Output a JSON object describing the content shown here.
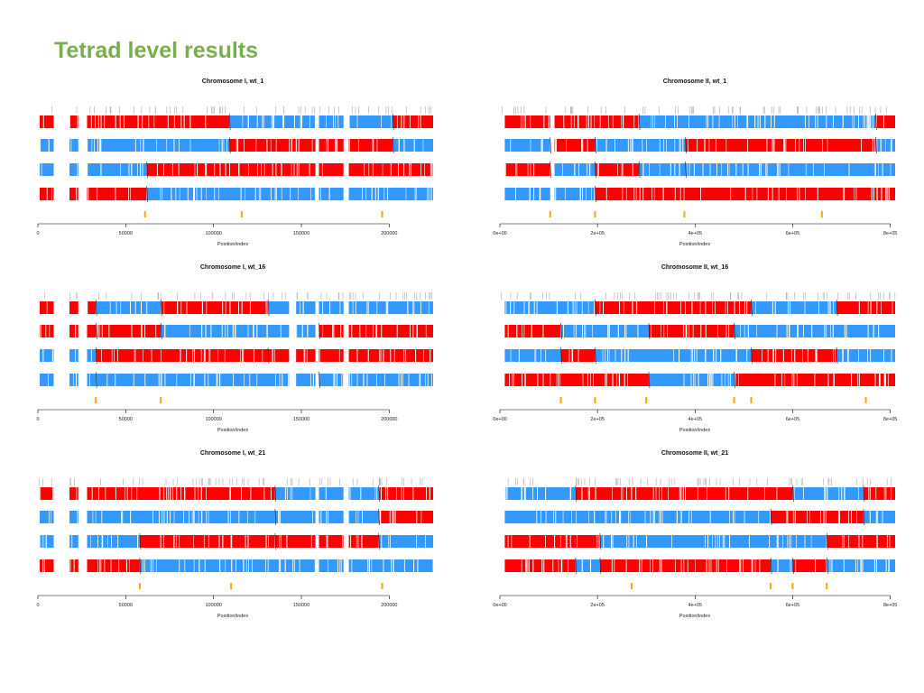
{
  "slide": {
    "title": "Tetrad level results"
  },
  "colors": {
    "parent_a": "#ff0000",
    "parent_b": "#3399ff",
    "crossover_marker": "#ffa500",
    "marker_tick": "#aaaaaa",
    "axis": "#000000",
    "title": "#77b04a"
  },
  "chart_data": [
    {
      "type": "bar",
      "title": "Chromosome I, wt_1",
      "xlabel": "Position/index",
      "xlim": [
        0,
        225000
      ],
      "xticks": [
        0,
        50000,
        100000,
        150000,
        200000
      ],
      "xtick_labels": [
        "0",
        "50000",
        "100000",
        "150000",
        "200000"
      ],
      "gaps": [
        [
          9000,
          18000
        ],
        [
          23000,
          28000
        ],
        [
          158000,
          160000
        ],
        [
          174000,
          177000
        ]
      ],
      "spores": [
        {
          "segments": [
            [
              1000,
              109000,
              "red"
            ],
            [
              109000,
              202000,
              "blue"
            ],
            [
              202000,
              225000,
              "red"
            ]
          ]
        },
        {
          "segments": [
            [
              1000,
              109000,
              "blue"
            ],
            [
              109000,
              202000,
              "red"
            ],
            [
              202000,
              225000,
              "blue"
            ]
          ]
        },
        {
          "segments": [
            [
              1000,
              62000,
              "blue"
            ],
            [
              62000,
              225000,
              "red"
            ]
          ]
        },
        {
          "segments": [
            [
              1000,
              62000,
              "red"
            ],
            [
              62000,
              225000,
              "blue"
            ]
          ]
        }
      ],
      "crossovers": [
        61000,
        116000,
        196000
      ]
    },
    {
      "type": "bar",
      "title": "Chromosome II, wt_1",
      "xlabel": "Position/index",
      "xlim": [
        0,
        810000
      ],
      "xticks": [
        0,
        200000,
        400000,
        600000,
        800000
      ],
      "xtick_labels": [
        "0e+00",
        "2e+05",
        "4e+05",
        "6e+05",
        "8e+05"
      ],
      "gaps": [
        [
          103000,
          112000
        ]
      ],
      "spores": [
        {
          "segments": [
            [
              10000,
              285000,
              "red"
            ],
            [
              285000,
              770000,
              "blue"
            ],
            [
              770000,
              810000,
              "red"
            ]
          ]
        },
        {
          "segments": [
            [
              10000,
              103000,
              "blue"
            ],
            [
              103000,
              195000,
              "red"
            ],
            [
              195000,
              380000,
              "blue"
            ],
            [
              380000,
              770000,
              "red"
            ],
            [
              770000,
              810000,
              "blue"
            ]
          ]
        },
        {
          "segments": [
            [
              10000,
              103000,
              "red"
            ],
            [
              103000,
              195000,
              "blue"
            ],
            [
              195000,
              285000,
              "red"
            ],
            [
              285000,
              380000,
              "blue"
            ],
            [
              380000,
              810000,
              "blue"
            ]
          ]
        },
        {
          "segments": [
            [
              10000,
              195000,
              "blue"
            ],
            [
              195000,
              810000,
              "red"
            ]
          ]
        }
      ],
      "crossovers": [
        103000,
        195000,
        378000,
        660000
      ]
    },
    {
      "type": "bar",
      "title": "Chromosome I, wt_16",
      "xlabel": "Position/index",
      "xlim": [
        0,
        225000
      ],
      "xticks": [
        0,
        50000,
        100000,
        150000,
        200000
      ],
      "xtick_labels": [
        "0",
        "50000",
        "100000",
        "150000",
        "200000"
      ],
      "gaps": [
        [
          9000,
          18000
        ],
        [
          23000,
          28000
        ],
        [
          143000,
          147000
        ],
        [
          158000,
          160000
        ],
        [
          174000,
          177000
        ]
      ],
      "spores": [
        {
          "segments": [
            [
              1000,
              33000,
              "red"
            ],
            [
              33000,
              70000,
              "blue"
            ],
            [
              70000,
              131000,
              "red"
            ],
            [
              131000,
              225000,
              "blue"
            ]
          ]
        },
        {
          "segments": [
            [
              1000,
              33000,
              "red"
            ],
            [
              33000,
              70000,
              "red"
            ],
            [
              70000,
              160000,
              "blue"
            ],
            [
              160000,
              225000,
              "red"
            ]
          ]
        },
        {
          "segments": [
            [
              1000,
              33000,
              "blue"
            ],
            [
              33000,
              131000,
              "red"
            ],
            [
              131000,
              225000,
              "red"
            ]
          ]
        },
        {
          "segments": [
            [
              1000,
              33000,
              "blue"
            ],
            [
              33000,
              160000,
              "blue"
            ],
            [
              160000,
              225000,
              "blue"
            ]
          ]
        }
      ],
      "crossovers": [
        33000,
        70000
      ]
    },
    {
      "type": "bar",
      "title": "Chromosome II, wt_16",
      "xlabel": "Position/index",
      "xlim": [
        0,
        810000
      ],
      "xticks": [
        0,
        200000,
        400000,
        600000,
        800000
      ],
      "xtick_labels": [
        "0e+00",
        "2e+05",
        "4e+05",
        "6e+05",
        "8e+05"
      ],
      "gaps": [],
      "spores": [
        {
          "segments": [
            [
              10000,
              195000,
              "blue"
            ],
            [
              195000,
              515000,
              "red"
            ],
            [
              515000,
              690000,
              "blue"
            ],
            [
              690000,
              810000,
              "red"
            ]
          ]
        },
        {
          "segments": [
            [
              10000,
              125000,
              "red"
            ],
            [
              125000,
              305000,
              "blue"
            ],
            [
              305000,
              480000,
              "red"
            ],
            [
              480000,
              810000,
              "blue"
            ]
          ]
        },
        {
          "segments": [
            [
              10000,
              125000,
              "blue"
            ],
            [
              125000,
              195000,
              "red"
            ],
            [
              195000,
              515000,
              "blue"
            ],
            [
              515000,
              690000,
              "red"
            ],
            [
              690000,
              810000,
              "blue"
            ]
          ]
        },
        {
          "segments": [
            [
              10000,
              305000,
              "red"
            ],
            [
              305000,
              480000,
              "blue"
            ],
            [
              480000,
              810000,
              "red"
            ]
          ]
        }
      ],
      "crossovers": [
        125000,
        195000,
        300000,
        480000,
        515000,
        750000
      ]
    },
    {
      "type": "bar",
      "title": "Chromosome I, wt_21",
      "xlabel": "Position/index",
      "xlim": [
        0,
        225000
      ],
      "xticks": [
        0,
        50000,
        100000,
        150000,
        200000
      ],
      "xtick_labels": [
        "0",
        "50000",
        "100000",
        "150000",
        "200000"
      ],
      "gaps": [
        [
          9000,
          18000
        ],
        [
          23000,
          28000
        ],
        [
          158000,
          160000
        ],
        [
          174000,
          177000
        ]
      ],
      "spores": [
        {
          "segments": [
            [
              1000,
              135000,
              "red"
            ],
            [
              135000,
              194000,
              "blue"
            ],
            [
              194000,
              225000,
              "red"
            ]
          ]
        },
        {
          "segments": [
            [
              1000,
              135000,
              "blue"
            ],
            [
              135000,
              194000,
              "blue"
            ],
            [
              194000,
              225000,
              "red"
            ]
          ]
        },
        {
          "segments": [
            [
              1000,
              58000,
              "blue"
            ],
            [
              58000,
              135000,
              "red"
            ],
            [
              135000,
              194000,
              "red"
            ],
            [
              194000,
              225000,
              "blue"
            ]
          ]
        },
        {
          "segments": [
            [
              1000,
              58000,
              "red"
            ],
            [
              58000,
              225000,
              "blue"
            ]
          ]
        }
      ],
      "crossovers": [
        58000,
        110000,
        196000
      ]
    },
    {
      "type": "bar",
      "title": "Chromosome II, wt_21",
      "xlabel": "Position/index",
      "xlim": [
        0,
        810000
      ],
      "xticks": [
        0,
        200000,
        400000,
        600000,
        800000
      ],
      "xtick_labels": [
        "0e+00",
        "2e+05",
        "4e+05",
        "6e+05",
        "8e+05"
      ],
      "gaps": [],
      "spores": [
        {
          "segments": [
            [
              10000,
              155000,
              "blue"
            ],
            [
              155000,
              600000,
              "red"
            ],
            [
              600000,
              745000,
              "blue"
            ],
            [
              745000,
              810000,
              "red"
            ]
          ]
        },
        {
          "segments": [
            [
              10000,
              555000,
              "blue"
            ],
            [
              555000,
              745000,
              "red"
            ],
            [
              745000,
              810000,
              "blue"
            ]
          ]
        },
        {
          "segments": [
            [
              10000,
              205000,
              "red"
            ],
            [
              205000,
              670000,
              "blue"
            ],
            [
              670000,
              810000,
              "red"
            ]
          ]
        },
        {
          "segments": [
            [
              10000,
              155000,
              "red"
            ],
            [
              155000,
              205000,
              "blue"
            ],
            [
              205000,
              555000,
              "red"
            ],
            [
              555000,
              600000,
              "blue"
            ],
            [
              600000,
              670000,
              "red"
            ],
            [
              670000,
              810000,
              "blue"
            ]
          ]
        }
      ],
      "crossovers": [
        270000,
        555000,
        600000,
        670000
      ]
    }
  ]
}
